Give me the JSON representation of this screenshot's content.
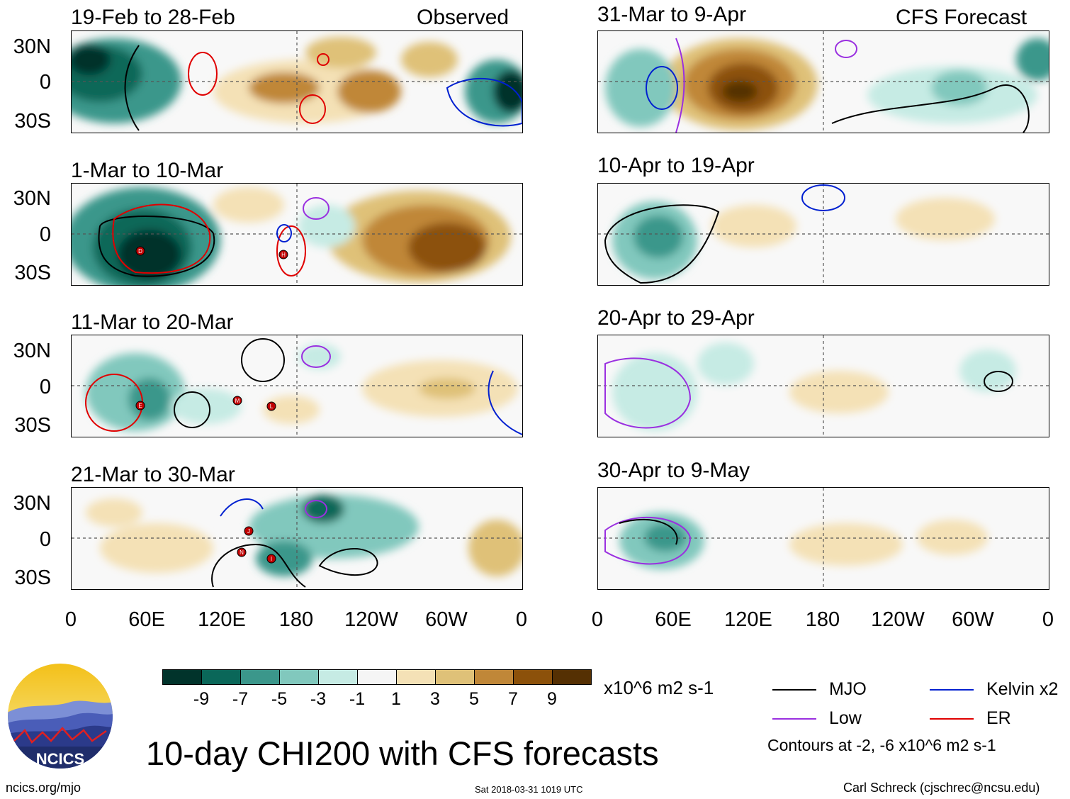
{
  "headers": {
    "observed": "Observed",
    "forecast": "CFS Forecast"
  },
  "panels_observed": [
    {
      "title": "19-Feb to 28-Feb"
    },
    {
      "title": "1-Mar to 10-Mar"
    },
    {
      "title": "11-Mar to 20-Mar"
    },
    {
      "title": "21-Mar to 30-Mar"
    }
  ],
  "panels_forecast": [
    {
      "title": "31-Mar to 9-Apr"
    },
    {
      "title": "10-Apr to 19-Apr"
    },
    {
      "title": "20-Apr to 29-Apr"
    },
    {
      "title": "30-Apr to 9-May"
    }
  ],
  "lat_labels": [
    "30N",
    "0",
    "30S"
  ],
  "lon_labels": [
    "0",
    "60E",
    "120E",
    "180",
    "120W",
    "60W",
    "0"
  ],
  "storm_markers": [
    "D",
    "H",
    "E",
    "M",
    "L",
    "J",
    "N",
    "I"
  ],
  "colorbar": {
    "units": "x10^6 m2 s-1",
    "ticks": [
      "-9",
      "-7",
      "-5",
      "-3",
      "-1",
      "1",
      "3",
      "5",
      "7",
      "9"
    ],
    "colors": [
      "#01332b",
      "#0a6759",
      "#3b978b",
      "#81c8bd",
      "#c6ebe4",
      "#f5f5f5",
      "#f4e1b6",
      "#dfc178",
      "#c08738",
      "#8c510a",
      "#553003"
    ]
  },
  "legend": {
    "items": [
      {
        "label": "MJO",
        "color": "#000000"
      },
      {
        "label": "Kelvin x2",
        "color": "#0020d0"
      },
      {
        "label": "Low",
        "color": "#9a30e0"
      },
      {
        "label": "ER",
        "color": "#e00000"
      }
    ],
    "contours_note": "Contours at -2, -6 x10^6 m2 s-1"
  },
  "logo_text": "NCICS",
  "main_title": "10-day CHI200 with CFS forecasts",
  "footer": {
    "url": "ncics.org/mjo",
    "timestamp": "Sat 2018-03-31 1019 UTC",
    "author": "Carl Schreck (cjschrec@ncsu.edu)"
  }
}
